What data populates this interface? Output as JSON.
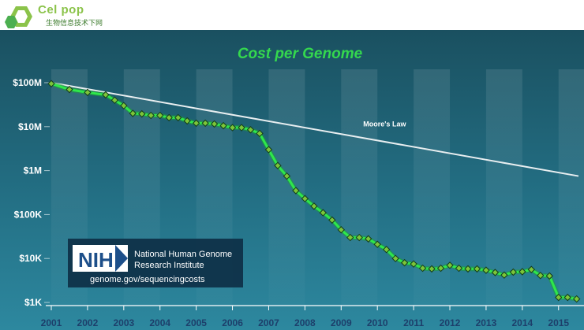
{
  "header": {
    "logo_text": "Cel pop",
    "logo_subtitle": "生物信息技术下网"
  },
  "colors": {
    "background_top": "#1d5a68",
    "background_bottom": "#2a8198",
    "title_green": "#34d84e",
    "series_line": "#2ee84a",
    "marker_fill": "#7cc53a",
    "moore_line": "#e8eef0"
  },
  "nih": {
    "acronym": "NIH",
    "name_line1": "National Human Genome",
    "name_line2": "Research Institute",
    "url": "genome.gov/sequencingcosts"
  },
  "chart_data": {
    "type": "line",
    "title": "Cost per Genome",
    "xlabel": "",
    "ylabel": "",
    "y_scale": "log",
    "ylim": [
      1000,
      100000000
    ],
    "xlim": [
      2001.0,
      2015.55
    ],
    "y_ticks": [
      {
        "value": 100000000,
        "label": "$100M"
      },
      {
        "value": 10000000,
        "label": "$10M"
      },
      {
        "value": 1000000,
        "label": "$1M"
      },
      {
        "value": 100000,
        "label": "$100K"
      },
      {
        "value": 10000,
        "label": "$10K"
      },
      {
        "value": 1000,
        "label": "$1K"
      }
    ],
    "x_ticks": [
      {
        "value": 2001.0,
        "label": "2001"
      },
      {
        "value": 2002.0,
        "label": "2002"
      },
      {
        "value": 2003.0,
        "label": "2003"
      },
      {
        "value": 2004.0,
        "label": "2004"
      },
      {
        "value": 2005.0,
        "label": "2005"
      },
      {
        "value": 2006.0,
        "label": "2006"
      },
      {
        "value": 2007.0,
        "label": "2007"
      },
      {
        "value": 2008.0,
        "label": "2008"
      },
      {
        "value": 2009.0,
        "label": "2009"
      },
      {
        "value": 2010.0,
        "label": "2010"
      },
      {
        "value": 2011.0,
        "label": "2011"
      },
      {
        "value": 2012.0,
        "label": "2012"
      },
      {
        "value": 2013.0,
        "label": "2013"
      },
      {
        "value": 2014.0,
        "label": "2014"
      },
      {
        "value": 2015.0,
        "label": "2015"
      }
    ],
    "series": [
      {
        "name": "Cost per Genome",
        "x": [
          2001.0,
          2001.5,
          2002.0,
          2002.5,
          2002.75,
          2003.0,
          2003.25,
          2003.5,
          2003.75,
          2004.0,
          2004.25,
          2004.5,
          2004.75,
          2005.0,
          2005.25,
          2005.5,
          2005.75,
          2006.0,
          2006.25,
          2006.5,
          2006.75,
          2007.0,
          2007.25,
          2007.5,
          2007.75,
          2008.0,
          2008.25,
          2008.5,
          2008.75,
          2009.0,
          2009.25,
          2009.5,
          2009.75,
          2010.0,
          2010.25,
          2010.5,
          2010.75,
          2011.0,
          2011.25,
          2011.5,
          2011.75,
          2012.0,
          2012.25,
          2012.5,
          2012.75,
          2013.0,
          2013.25,
          2013.5,
          2013.75,
          2014.0,
          2014.25,
          2014.5,
          2014.75,
          2015.0,
          2015.25,
          2015.5
        ],
        "y": [
          95000000,
          70000000,
          60000000,
          53000000,
          40000000,
          30000000,
          20000000,
          19500000,
          18000000,
          18000000,
          16000000,
          16000000,
          13500000,
          12000000,
          12000000,
          11500000,
          10500000,
          9500000,
          9500000,
          8500000,
          7000000,
          3000000,
          1300000,
          750000,
          350000,
          230000,
          155000,
          110000,
          75000,
          45000,
          30000,
          30000,
          28000,
          21000,
          16000,
          10000,
          8000,
          7500,
          6000,
          5800,
          6000,
          7000,
          6000,
          5800,
          5800,
          5400,
          4800,
          4200,
          4900,
          5000,
          5600,
          4100,
          4000,
          1300,
          1300,
          1200
        ]
      },
      {
        "name": "Moore's Law",
        "x": [
          2001.0,
          2015.55
        ],
        "y": [
          100000000,
          750000
        ]
      }
    ],
    "annotations": [
      {
        "text": "Moore's Law",
        "x": 2010.2,
        "y": 12000000
      }
    ]
  }
}
